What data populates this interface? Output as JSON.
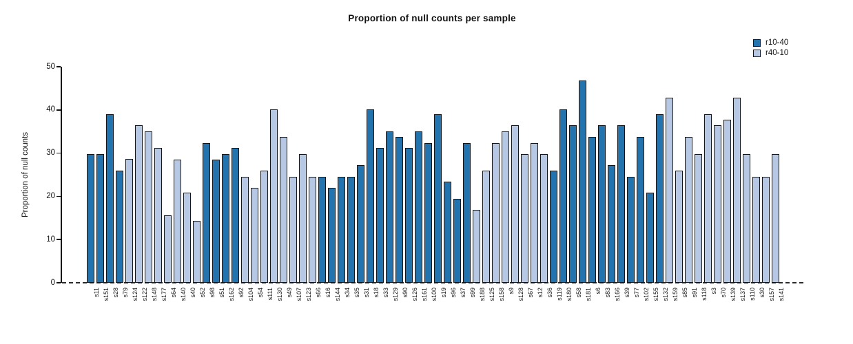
{
  "chart_data": {
    "type": "bar",
    "title": "Proportion of null counts per sample",
    "xlabel": "",
    "ylabel": "Proportion of null counts",
    "ylim": [
      0,
      50
    ],
    "yticks": [
      0,
      10,
      20,
      30,
      40,
      50
    ],
    "grid": false,
    "zero_line_style": "dashed",
    "bar_border_color": "#13161a",
    "legend": {
      "position": "top-right",
      "entries": [
        {
          "name": "r10-40",
          "color": "#2374AE"
        },
        {
          "name": "r40-10",
          "color": "#B6C8E4"
        }
      ]
    },
    "samples": [
      {
        "label": "s11",
        "value": 29.8,
        "series": "r10-40"
      },
      {
        "label": "s151",
        "value": 29.8,
        "series": "r10-40"
      },
      {
        "label": "s28",
        "value": 39.0,
        "series": "r10-40"
      },
      {
        "label": "s79",
        "value": 26.0,
        "series": "r10-40"
      },
      {
        "label": "s124",
        "value": 28.6,
        "series": "r40-10"
      },
      {
        "label": "s122",
        "value": 36.4,
        "series": "r40-10"
      },
      {
        "label": "s148",
        "value": 35.0,
        "series": "r40-10"
      },
      {
        "label": "s177",
        "value": 31.2,
        "series": "r40-10"
      },
      {
        "label": "s64",
        "value": 15.6,
        "series": "r40-10"
      },
      {
        "label": "s140",
        "value": 28.5,
        "series": "r40-10"
      },
      {
        "label": "s40",
        "value": 20.8,
        "series": "r40-10"
      },
      {
        "label": "s52",
        "value": 14.3,
        "series": "r40-10"
      },
      {
        "label": "s98",
        "value": 32.4,
        "series": "r10-40"
      },
      {
        "label": "s51",
        "value": 28.5,
        "series": "r10-40"
      },
      {
        "label": "s162",
        "value": 29.8,
        "series": "r10-40"
      },
      {
        "label": "s92",
        "value": 31.2,
        "series": "r10-40"
      },
      {
        "label": "s104",
        "value": 24.6,
        "series": "r40-10"
      },
      {
        "label": "s54",
        "value": 22.0,
        "series": "r40-10"
      },
      {
        "label": "s111",
        "value": 26.0,
        "series": "r40-10"
      },
      {
        "label": "s130",
        "value": 40.2,
        "series": "r40-10"
      },
      {
        "label": "s49",
        "value": 33.8,
        "series": "r40-10"
      },
      {
        "label": "s107",
        "value": 24.6,
        "series": "r40-10"
      },
      {
        "label": "s123",
        "value": 29.8,
        "series": "r40-10"
      },
      {
        "label": "s66",
        "value": 24.6,
        "series": "r40-10"
      },
      {
        "label": "s16",
        "value": 24.6,
        "series": "r10-40"
      },
      {
        "label": "s144",
        "value": 22.0,
        "series": "r10-40"
      },
      {
        "label": "s34",
        "value": 24.6,
        "series": "r10-40"
      },
      {
        "label": "s35",
        "value": 24.6,
        "series": "r10-40"
      },
      {
        "label": "s31",
        "value": 27.2,
        "series": "r10-40"
      },
      {
        "label": "s18",
        "value": 40.2,
        "series": "r10-40"
      },
      {
        "label": "s33",
        "value": 31.2,
        "series": "r10-40"
      },
      {
        "label": "s129",
        "value": 35.0,
        "series": "r10-40"
      },
      {
        "label": "s90",
        "value": 33.8,
        "series": "r10-40"
      },
      {
        "label": "s126",
        "value": 31.2,
        "series": "r10-40"
      },
      {
        "label": "s161",
        "value": 35.0,
        "series": "r10-40"
      },
      {
        "label": "s100",
        "value": 32.4,
        "series": "r10-40"
      },
      {
        "label": "s19",
        "value": 39.0,
        "series": "r10-40"
      },
      {
        "label": "s96",
        "value": 23.4,
        "series": "r10-40"
      },
      {
        "label": "s37",
        "value": 19.5,
        "series": "r10-40"
      },
      {
        "label": "s99",
        "value": 32.4,
        "series": "r10-40"
      },
      {
        "label": "s188",
        "value": 16.8,
        "series": "r40-10"
      },
      {
        "label": "s125",
        "value": 26.0,
        "series": "r40-10"
      },
      {
        "label": "s158",
        "value": 32.4,
        "series": "r40-10"
      },
      {
        "label": "s9",
        "value": 35.0,
        "series": "r40-10"
      },
      {
        "label": "s128",
        "value": 36.4,
        "series": "r40-10"
      },
      {
        "label": "s67",
        "value": 29.8,
        "series": "r40-10"
      },
      {
        "label": "s12",
        "value": 32.4,
        "series": "r40-10"
      },
      {
        "label": "s36",
        "value": 29.8,
        "series": "r40-10"
      },
      {
        "label": "s119",
        "value": 26.0,
        "series": "r10-40"
      },
      {
        "label": "s180",
        "value": 40.2,
        "series": "r10-40"
      },
      {
        "label": "s58",
        "value": 36.4,
        "series": "r10-40"
      },
      {
        "label": "s181",
        "value": 46.8,
        "series": "r10-40"
      },
      {
        "label": "s6",
        "value": 33.8,
        "series": "r10-40"
      },
      {
        "label": "s83",
        "value": 36.4,
        "series": "r10-40"
      },
      {
        "label": "s166",
        "value": 27.2,
        "series": "r10-40"
      },
      {
        "label": "s39",
        "value": 36.4,
        "series": "r10-40"
      },
      {
        "label": "s77",
        "value": 24.6,
        "series": "r10-40"
      },
      {
        "label": "s102",
        "value": 33.8,
        "series": "r10-40"
      },
      {
        "label": "s155",
        "value": 20.8,
        "series": "r10-40"
      },
      {
        "label": "s132",
        "value": 39.0,
        "series": "r10-40"
      },
      {
        "label": "s159",
        "value": 42.8,
        "series": "r40-10"
      },
      {
        "label": "s85",
        "value": 26.0,
        "series": "r40-10"
      },
      {
        "label": "s91",
        "value": 33.8,
        "series": "r40-10"
      },
      {
        "label": "s118",
        "value": 29.8,
        "series": "r40-10"
      },
      {
        "label": "s3",
        "value": 39.0,
        "series": "r40-10"
      },
      {
        "label": "s70",
        "value": 36.4,
        "series": "r40-10"
      },
      {
        "label": "s139",
        "value": 37.7,
        "series": "r40-10"
      },
      {
        "label": "s137",
        "value": 42.8,
        "series": "r40-10"
      },
      {
        "label": "s110",
        "value": 29.8,
        "series": "r40-10"
      },
      {
        "label": "s30",
        "value": 24.6,
        "series": "r40-10"
      },
      {
        "label": "s157",
        "value": 24.6,
        "series": "r40-10"
      },
      {
        "label": "s141",
        "value": 29.8,
        "series": "r40-10"
      }
    ]
  }
}
